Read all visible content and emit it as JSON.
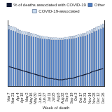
{
  "chart_data": {
    "type": "bar",
    "stacked": true,
    "legend": "top",
    "tick_labels": "x",
    "grid": false,
    "x_label": "Week of death",
    "categories": [
      "Mar 7",
      null,
      "Mar 21",
      null,
      "Apr 4",
      null,
      "Apr 18",
      null,
      "May 2",
      null,
      "May 16",
      null,
      "May 30",
      null,
      "Jun 13",
      null,
      "Jun 27",
      null,
      "Jul 11",
      null,
      "Jul 25",
      null,
      "Aug 8",
      null,
      "Aug 22",
      null,
      "Sep 5",
      null,
      "Sep 19",
      null,
      "Oct 3",
      null,
      "Oct 17",
      null,
      "Oct 31",
      null,
      "Nov 14",
      null,
      "Nov 28",
      null,
      "Dec 12",
      null,
      "Dec 26"
    ],
    "ylim": [
      0,
      65000
    ],
    "y2lim": [
      0,
      100
    ],
    "series": [
      {
        "name": "Other",
        "type": "bar",
        "color": "#4f7fc4",
        "values": [
          56000,
          55500,
          55000,
          54000,
          53000,
          52000,
          51500,
          51000,
          50500,
          50000,
          49500,
          49000,
          48500,
          48000,
          47500,
          47000,
          47000,
          46500,
          46500,
          46000,
          46000,
          46000,
          46000,
          46000,
          46000,
          46500,
          46500,
          47000,
          47000,
          47500,
          48000,
          48500,
          49000,
          49500,
          50000,
          51000,
          52000,
          53000,
          54000,
          55000,
          56000,
          57000,
          58000
        ]
      },
      {
        "name": "COVID-19-associated",
        "type": "bar",
        "color": "#c9dcf0",
        "values": [
          4000,
          3900,
          3800,
          3700,
          3600,
          3500,
          3400,
          3300,
          3200,
          3100,
          3000,
          2900,
          2800,
          2700,
          2600,
          2500,
          2400,
          2300,
          2200,
          2200,
          2100,
          2100,
          2000,
          2000,
          2000,
          2100,
          2100,
          2200,
          2200,
          2300,
          2400,
          2500,
          2600,
          2700,
          2800,
          2900,
          3000,
          3200,
          3300,
          3400,
          3500,
          3600,
          3700
        ]
      },
      {
        "name": "% of deaths associated with COVID-19",
        "type": "line",
        "axis": "y2",
        "color": "#111a33",
        "line_style": "solid",
        "marker": "none",
        "values": [
          30,
          29,
          28,
          27,
          26,
          25,
          24,
          23,
          22,
          21,
          20,
          19,
          18,
          17,
          16,
          15,
          14,
          13,
          12,
          12,
          11,
          11,
          10,
          10,
          10,
          11,
          11,
          12,
          12,
          13,
          14,
          15,
          16,
          17,
          18,
          19,
          20,
          22,
          23,
          24,
          25,
          26,
          27
        ]
      }
    ]
  }
}
